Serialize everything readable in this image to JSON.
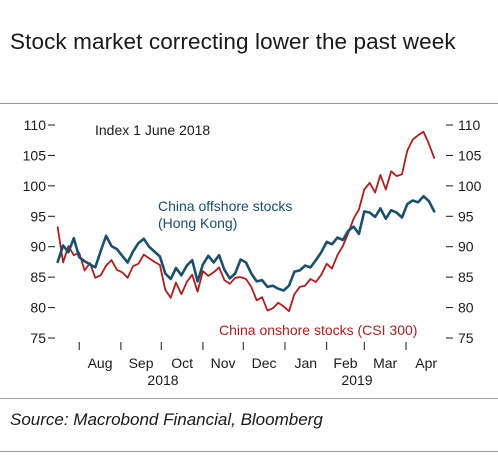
{
  "title": "Stock market correcting lower the past week",
  "source": "Source: Macrobond Financial, Bloomberg",
  "colors": {
    "offshore": "#1b4f6e",
    "onshore": "#b11d1d",
    "text": "#1a1a1a",
    "rule": "#9a9a9a"
  },
  "chart_data": {
    "type": "line",
    "note": "Index 1 June 2018",
    "ylim": [
      75,
      110
    ],
    "yticks": [
      75,
      80,
      85,
      90,
      95,
      100,
      105,
      110
    ],
    "yticks_right": [
      75,
      80,
      85,
      90,
      95,
      100,
      105,
      110
    ],
    "x_months": [
      "Aug",
      "Sep",
      "Oct",
      "Nov",
      "Dec",
      "Jan",
      "Feb",
      "Mar",
      "Apr"
    ],
    "x_years": [
      "2018",
      "2019"
    ],
    "annotations": {
      "offshore_line1": "China offshore stocks",
      "offshore_line2": "(Hong Kong)",
      "onshore": "China onshore stocks (CSI 300)"
    },
    "series": [
      {
        "name": "China offshore stocks (Hong Kong)",
        "x": [
          "2018-07-16",
          "2018-07-20",
          "2018-07-24",
          "2018-07-28",
          "2018-08-01",
          "2018-08-05",
          "2018-08-09",
          "2018-08-13",
          "2018-08-17",
          "2018-08-21",
          "2018-08-25",
          "2018-08-29",
          "2018-09-02",
          "2018-09-06",
          "2018-09-10",
          "2018-09-14",
          "2018-09-18",
          "2018-09-22",
          "2018-09-26",
          "2018-09-30",
          "2018-10-04",
          "2018-10-08",
          "2018-10-12",
          "2018-10-16",
          "2018-10-20",
          "2018-10-24",
          "2018-10-28",
          "2018-11-01",
          "2018-11-05",
          "2018-11-09",
          "2018-11-13",
          "2018-11-17",
          "2018-11-21",
          "2018-11-25",
          "2018-11-29",
          "2018-12-03",
          "2018-12-07",
          "2018-12-11",
          "2018-12-15",
          "2018-12-19",
          "2018-12-23",
          "2018-12-27",
          "2018-12-31",
          "2019-01-04",
          "2019-01-08",
          "2019-01-12",
          "2019-01-16",
          "2019-01-20",
          "2019-01-24",
          "2019-01-28",
          "2019-02-01",
          "2019-02-05",
          "2019-02-09",
          "2019-02-13",
          "2019-02-17",
          "2019-02-21",
          "2019-02-25",
          "2019-03-01",
          "2019-03-05",
          "2019-03-09",
          "2019-03-13",
          "2019-03-17",
          "2019-03-21",
          "2019-03-25",
          "2019-03-29",
          "2019-04-02",
          "2019-04-06",
          "2019-04-10",
          "2019-04-14",
          "2019-04-18",
          "2019-04-22"
        ],
        "values": [
          87.5,
          90.2,
          89.1,
          91.4,
          88.3,
          87.6,
          87.1,
          86.6,
          89.3,
          91.8,
          90.1,
          89.6,
          88.5,
          87.4,
          89.2,
          90.6,
          91.3,
          90.0,
          89.2,
          88.4,
          85.6,
          84.7,
          86.5,
          85.3,
          86.9,
          87.8,
          84.3,
          87.1,
          88.5,
          87.4,
          88.6,
          86.2,
          84.8,
          85.6,
          87.9,
          87.4,
          85.6,
          84.3,
          84.5,
          83.4,
          83.6,
          83.1,
          82.8,
          83.6,
          85.9,
          86.1,
          86.9,
          86.6,
          87.8,
          89.1,
          90.8,
          90.4,
          91.5,
          91.1,
          92.6,
          93.3,
          92.1,
          95.8,
          95.6,
          94.9,
          96.3,
          94.6,
          96.0,
          95.6,
          94.8,
          97.0,
          97.6,
          97.3,
          98.3,
          97.5,
          95.8
        ]
      },
      {
        "name": "China onshore stocks (CSI 300)",
        "x": [
          "2018-07-16",
          "2018-07-20",
          "2018-07-24",
          "2018-07-28",
          "2018-08-01",
          "2018-08-05",
          "2018-08-09",
          "2018-08-13",
          "2018-08-17",
          "2018-08-21",
          "2018-08-25",
          "2018-08-29",
          "2018-09-02",
          "2018-09-06",
          "2018-09-10",
          "2018-09-14",
          "2018-09-18",
          "2018-09-22",
          "2018-09-26",
          "2018-09-30",
          "2018-10-04",
          "2018-10-08",
          "2018-10-12",
          "2018-10-16",
          "2018-10-20",
          "2018-10-24",
          "2018-10-28",
          "2018-11-01",
          "2018-11-05",
          "2018-11-09",
          "2018-11-13",
          "2018-11-17",
          "2018-11-21",
          "2018-11-25",
          "2018-11-29",
          "2018-12-03",
          "2018-12-07",
          "2018-12-11",
          "2018-12-15",
          "2018-12-19",
          "2018-12-23",
          "2018-12-27",
          "2018-12-31",
          "2019-01-04",
          "2019-01-08",
          "2019-01-12",
          "2019-01-16",
          "2019-01-20",
          "2019-01-24",
          "2019-01-28",
          "2019-02-01",
          "2019-02-05",
          "2019-02-09",
          "2019-02-13",
          "2019-02-17",
          "2019-02-21",
          "2019-02-25",
          "2019-03-01",
          "2019-03-05",
          "2019-03-09",
          "2019-03-13",
          "2019-03-17",
          "2019-03-21",
          "2019-03-25",
          "2019-03-29",
          "2019-04-02",
          "2019-04-06",
          "2019-04-10",
          "2019-04-14",
          "2019-04-18",
          "2019-04-22"
        ],
        "values": [
          93.2,
          87.4,
          90.1,
          88.6,
          89.0,
          86.1,
          87.3,
          84.9,
          85.3,
          86.9,
          87.8,
          86.2,
          85.8,
          84.9,
          86.8,
          87.2,
          88.7,
          88.1,
          87.5,
          87.0,
          82.9,
          81.6,
          84.1,
          82.2,
          84.2,
          85.4,
          82.6,
          86.0,
          85.2,
          85.8,
          86.6,
          84.5,
          83.9,
          84.9,
          85.0,
          84.7,
          83.4,
          81.2,
          81.7,
          79.5,
          79.9,
          80.8,
          80.2,
          79.4,
          82.2,
          83.4,
          83.6,
          84.7,
          84.2,
          85.4,
          87.2,
          86.4,
          88.6,
          90.1,
          92.2,
          94.6,
          96.1,
          99.4,
          100.5,
          98.9,
          101.8,
          99.4,
          102.4,
          101.6,
          101.9,
          105.8,
          107.6,
          108.3,
          108.9,
          106.9,
          104.6
        ]
      }
    ]
  }
}
